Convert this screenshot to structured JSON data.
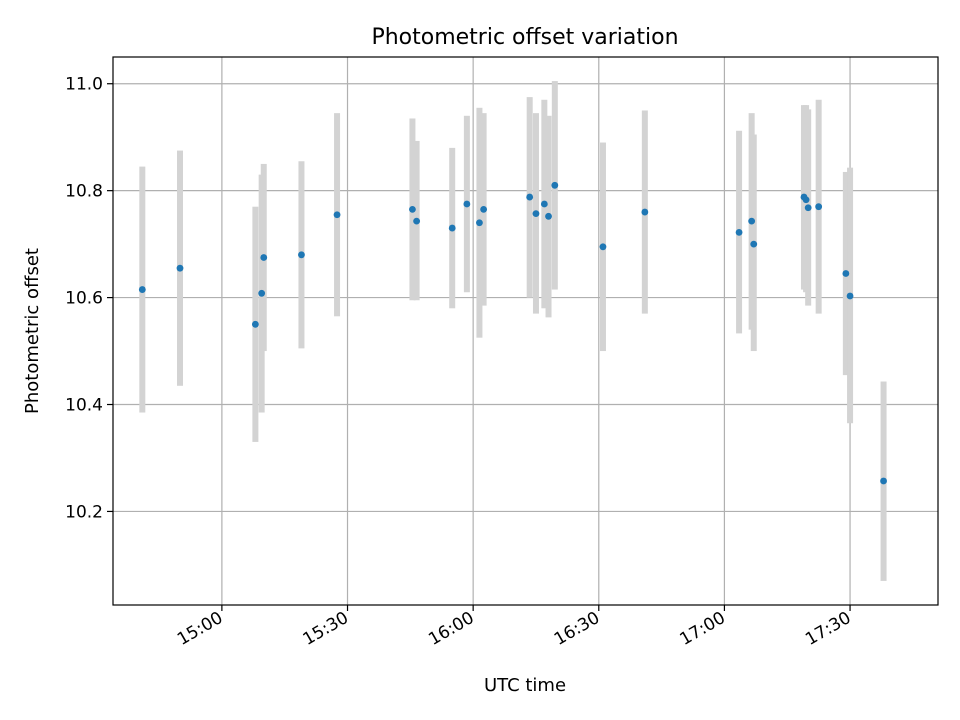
{
  "chart_data": {
    "type": "scatter",
    "title": "Photometric offset variation",
    "xlabel": "UTC time",
    "ylabel": "Photometric offset",
    "x_format": "HH:MM",
    "xlim": [
      "14:34",
      "17:51"
    ],
    "ylim": [
      10.025,
      11.05
    ],
    "x_ticks": [
      "15:00",
      "15:30",
      "16:00",
      "16:30",
      "17:00",
      "17:30"
    ],
    "y_ticks": [
      "10.2",
      "10.4",
      "10.6",
      "10.8",
      "11.0"
    ],
    "grid": true,
    "marker_color": "#1f77b4",
    "errorbar_color": "#d3d3d3",
    "series": [
      {
        "points": [
          {
            "x": "14:41:00",
            "y": 10.615,
            "ylo": 10.385,
            "yhi": 10.845
          },
          {
            "x": "14:50:00",
            "y": 10.655,
            "ylo": 10.435,
            "yhi": 10.875
          },
          {
            "x": "15:08:00",
            "y": 10.55,
            "ylo": 10.33,
            "yhi": 10.77
          },
          {
            "x": "15:09:30",
            "y": 10.608,
            "ylo": 10.385,
            "yhi": 10.83
          },
          {
            "x": "15:10:00",
            "y": 10.675,
            "ylo": 10.5,
            "yhi": 10.85
          },
          {
            "x": "15:19:00",
            "y": 10.68,
            "ylo": 10.505,
            "yhi": 10.855
          },
          {
            "x": "15:27:30",
            "y": 10.755,
            "ylo": 10.565,
            "yhi": 10.945
          },
          {
            "x": "15:45:30",
            "y": 10.765,
            "ylo": 10.595,
            "yhi": 10.935
          },
          {
            "x": "15:46:30",
            "y": 10.743,
            "ylo": 10.595,
            "yhi": 10.893
          },
          {
            "x": "15:55:00",
            "y": 10.73,
            "ylo": 10.58,
            "yhi": 10.88
          },
          {
            "x": "15:58:30",
            "y": 10.775,
            "ylo": 10.61,
            "yhi": 10.94
          },
          {
            "x": "16:01:30",
            "y": 10.74,
            "ylo": 10.525,
            "yhi": 10.955
          },
          {
            "x": "16:02:30",
            "y": 10.765,
            "ylo": 10.585,
            "yhi": 10.945
          },
          {
            "x": "16:13:30",
            "y": 10.788,
            "ylo": 10.6,
            "yhi": 10.975
          },
          {
            "x": "16:15:00",
            "y": 10.757,
            "ylo": 10.57,
            "yhi": 10.945
          },
          {
            "x": "16:17:00",
            "y": 10.775,
            "ylo": 10.58,
            "yhi": 10.97
          },
          {
            "x": "16:18:00",
            "y": 10.752,
            "ylo": 10.563,
            "yhi": 10.94
          },
          {
            "x": "16:19:30",
            "y": 10.81,
            "ylo": 10.615,
            "yhi": 11.005
          },
          {
            "x": "16:31:00",
            "y": 10.695,
            "ylo": 10.5,
            "yhi": 10.89
          },
          {
            "x": "16:41:00",
            "y": 10.76,
            "ylo": 10.57,
            "yhi": 10.95
          },
          {
            "x": "17:03:30",
            "y": 10.722,
            "ylo": 10.533,
            "yhi": 10.912
          },
          {
            "x": "17:06:30",
            "y": 10.743,
            "ylo": 10.54,
            "yhi": 10.945
          },
          {
            "x": "17:07:00",
            "y": 10.7,
            "ylo": 10.5,
            "yhi": 10.905
          },
          {
            "x": "17:19:00",
            "y": 10.788,
            "ylo": 10.615,
            "yhi": 10.96
          },
          {
            "x": "17:19:30",
            "y": 10.783,
            "ylo": 10.61,
            "yhi": 10.96
          },
          {
            "x": "17:20:00",
            "y": 10.768,
            "ylo": 10.585,
            "yhi": 10.952
          },
          {
            "x": "17:22:30",
            "y": 10.77,
            "ylo": 10.57,
            "yhi": 10.97
          },
          {
            "x": "17:29:00",
            "y": 10.645,
            "ylo": 10.455,
            "yhi": 10.835
          },
          {
            "x": "17:30:00",
            "y": 10.603,
            "ylo": 10.365,
            "yhi": 10.843
          },
          {
            "x": "17:38:00",
            "y": 10.257,
            "ylo": 10.07,
            "yhi": 10.443
          }
        ]
      }
    ]
  }
}
